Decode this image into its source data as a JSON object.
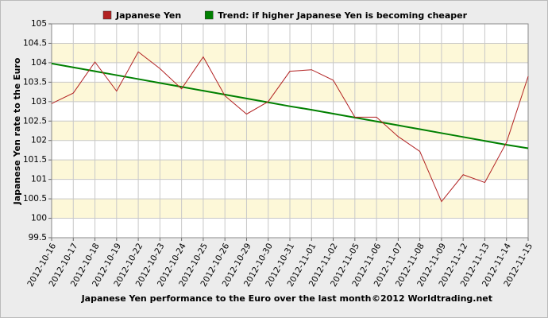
{
  "chart_data": {
    "type": "line",
    "y_label": "Japanese Yen rate to the Euro",
    "x_label": "Japanese Yen performance to the Euro over the last month",
    "credit": "©2012 Worldtrading.net",
    "categories": [
      "2012-10-16",
      "2012-10-17",
      "2012-10-18",
      "2012-10-19",
      "2012-10-22",
      "2012-10-23",
      "2012-10-24",
      "2012-10-25",
      "2012-10-26",
      "2012-10-29",
      "2012-10-30",
      "2012-10-31",
      "2012-11-01",
      "2012-11-02",
      "2012-11-05",
      "2012-11-06",
      "2012-11-07",
      "2012-11-08",
      "2012-11-09",
      "2012-11-12",
      "2012-11-13",
      "2012-11-14",
      "2012-11-15"
    ],
    "series": [
      {
        "name": "Japanese Yen",
        "color": "#b22222",
        "values": [
          102.95,
          103.22,
          104.02,
          103.27,
          104.28,
          103.85,
          103.33,
          104.15,
          103.15,
          102.68,
          103.0,
          103.78,
          103.82,
          103.55,
          102.6,
          102.6,
          102.1,
          101.72,
          100.43,
          101.12,
          100.92,
          101.95,
          103.65
        ]
      },
      {
        "name": "Trend: if higher Japanese Yen is becoming cheaper",
        "color": "#008000",
        "values": [
          103.98,
          103.88,
          103.78,
          103.68,
          103.58,
          103.48,
          103.38,
          103.28,
          103.18,
          103.08,
          102.98,
          102.88,
          102.79,
          102.69,
          102.59,
          102.49,
          102.39,
          102.29,
          102.19,
          102.09,
          101.99,
          101.89,
          101.8
        ]
      }
    ],
    "ylim": [
      99.5,
      105
    ],
    "yticks": [
      105,
      104.5,
      104,
      103.5,
      103,
      102.5,
      102,
      101.5,
      101,
      100.5,
      100,
      99.5
    ],
    "grid": true
  }
}
